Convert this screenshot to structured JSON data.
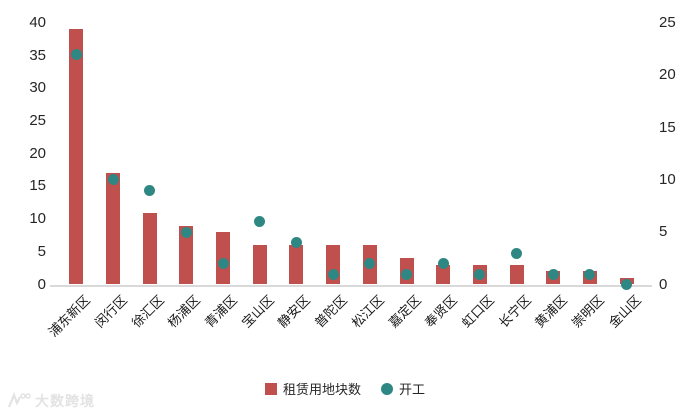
{
  "legend": {
    "bar_label": "租赁用地块数",
    "dot_label": "开工"
  },
  "watermark": {
    "text": "大数跨境"
  },
  "colors": {
    "bar": "#c0504d",
    "dot": "#2f8783",
    "axis_line": "#d9d9d9",
    "tick_text": "#262626",
    "watermark": "#e3e3e3"
  },
  "chart_data": {
    "type": "bar",
    "title": "",
    "xlabel": "",
    "ylabel": "",
    "categories": [
      "浦东新区",
      "闵行区",
      "徐汇区",
      "杨浦区",
      "青浦区",
      "宝山区",
      "静安区",
      "普陀区",
      "松江区",
      "嘉定区",
      "奉贤区",
      "虹口区",
      "长宁区",
      "黄浦区",
      "崇明区",
      "金山区"
    ],
    "series": [
      {
        "name": "租赁用地块数",
        "type": "bar",
        "axis": "left",
        "values": [
          39,
          17,
          11,
          9,
          8,
          6,
          6,
          6,
          6,
          4,
          3,
          3,
          3,
          2,
          2,
          1
        ]
      },
      {
        "name": "开工",
        "type": "scatter",
        "axis": "right",
        "values": [
          22,
          10,
          9,
          5,
          2,
          6,
          4,
          1,
          2,
          1,
          2,
          1,
          3,
          1,
          1,
          0
        ]
      }
    ],
    "left_axis": {
      "min": 0,
      "max": 40,
      "ticks": [
        0,
        5,
        10,
        15,
        20,
        25,
        30,
        35,
        40
      ]
    },
    "right_axis": {
      "min": 0,
      "max": 25,
      "ticks": [
        0,
        5,
        10,
        15,
        20,
        25
      ]
    },
    "grid": false,
    "legend_position": "bottom"
  }
}
